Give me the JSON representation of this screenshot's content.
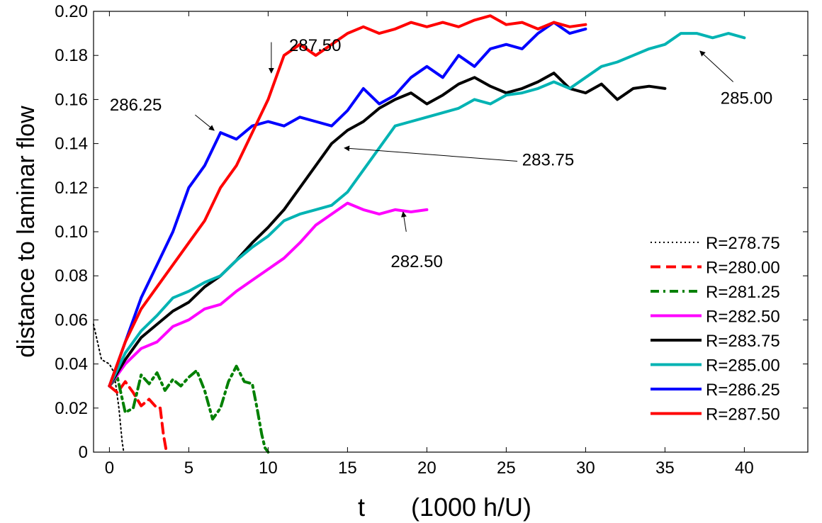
{
  "chart_data": {
    "type": "line",
    "xlabel": "t",
    "xlabel_units": "(1000 h/U)",
    "ylabel": "distance to laminar flow",
    "xlim": [
      -1,
      44
    ],
    "ylim": [
      0,
      0.2
    ],
    "x_ticks": [
      0,
      5,
      10,
      15,
      20,
      25,
      30,
      35,
      40
    ],
    "y_ticks": [
      0,
      0.02,
      0.04,
      0.06,
      0.08,
      0.1,
      0.12,
      0.14,
      0.16,
      0.18,
      0.2
    ],
    "y_tick_labels": [
      "0",
      "0.02",
      "0.04",
      "0.06",
      "0.08",
      "0.10",
      "0.12",
      "0.14",
      "0.16",
      "0.18",
      "0.20"
    ],
    "grid": false,
    "legend_position": "lower-right",
    "series": [
      {
        "name": "R=278.75",
        "color": "#000000",
        "style": "dotted",
        "x": [
          -1,
          -0.5,
          0,
          0.3,
          0.6,
          0.8,
          0.9
        ],
        "y": [
          0.058,
          0.042,
          0.04,
          0.036,
          0.02,
          0.005,
          0
        ]
      },
      {
        "name": "R=280.00",
        "color": "#ff0000",
        "style": "dashed",
        "x": [
          0,
          0.5,
          1,
          1.5,
          2,
          2.5,
          3,
          3.2,
          3.4,
          3.6
        ],
        "y": [
          0.03,
          0.027,
          0.032,
          0.027,
          0.021,
          0.024,
          0.02,
          0.02,
          0.008,
          0
        ]
      },
      {
        "name": "R=281.25",
        "color": "#008000",
        "style": "dashdot",
        "x": [
          0,
          0.5,
          1,
          1.5,
          2,
          2.5,
          3,
          3.5,
          4,
          4.5,
          5,
          5.5,
          6,
          6.5,
          7,
          7.5,
          8,
          8.5,
          9,
          9.3,
          9.6,
          9.8,
          10
        ],
        "y": [
          0.03,
          0.034,
          0.018,
          0.02,
          0.035,
          0.031,
          0.036,
          0.028,
          0.033,
          0.03,
          0.034,
          0.037,
          0.028,
          0.015,
          0.02,
          0.032,
          0.039,
          0.032,
          0.031,
          0.02,
          0.008,
          0.002,
          0
        ]
      },
      {
        "name": "R=282.50",
        "color": "#ff00ff",
        "style": "solid",
        "x": [
          0,
          1,
          2,
          3,
          4,
          5,
          6,
          7,
          8,
          9,
          10,
          11,
          12,
          13,
          14,
          15,
          16,
          17,
          18,
          19,
          20
        ],
        "y": [
          0.03,
          0.04,
          0.047,
          0.05,
          0.057,
          0.06,
          0.065,
          0.067,
          0.073,
          0.078,
          0.083,
          0.088,
          0.095,
          0.103,
          0.108,
          0.113,
          0.11,
          0.108,
          0.11,
          0.109,
          0.11
        ]
      },
      {
        "name": "R=283.75",
        "color": "#000000",
        "style": "solid",
        "x": [
          0,
          1,
          2,
          3,
          4,
          5,
          6,
          7,
          8,
          9,
          10,
          11,
          12,
          13,
          14,
          15,
          16,
          17,
          18,
          19,
          20,
          21,
          22,
          23,
          24,
          25,
          26,
          27,
          28,
          29,
          30,
          31,
          32,
          33,
          34,
          35
        ],
        "y": [
          0.03,
          0.042,
          0.052,
          0.058,
          0.064,
          0.068,
          0.075,
          0.08,
          0.087,
          0.095,
          0.102,
          0.11,
          0.12,
          0.13,
          0.14,
          0.146,
          0.15,
          0.156,
          0.16,
          0.163,
          0.158,
          0.162,
          0.167,
          0.17,
          0.166,
          0.163,
          0.165,
          0.168,
          0.172,
          0.165,
          0.163,
          0.167,
          0.16,
          0.165,
          0.166,
          0.165
        ]
      },
      {
        "name": "R=285.00",
        "color": "#00b3b3",
        "style": "solid",
        "x": [
          0,
          1,
          2,
          3,
          4,
          5,
          6,
          7,
          8,
          9,
          10,
          11,
          12,
          13,
          14,
          15,
          16,
          17,
          18,
          19,
          20,
          21,
          22,
          23,
          24,
          25,
          26,
          27,
          28,
          29,
          30,
          31,
          32,
          33,
          34,
          35,
          36,
          37,
          38,
          39,
          40
        ],
        "y": [
          0.03,
          0.045,
          0.055,
          0.062,
          0.07,
          0.073,
          0.077,
          0.08,
          0.087,
          0.093,
          0.098,
          0.105,
          0.108,
          0.11,
          0.112,
          0.118,
          0.128,
          0.138,
          0.148,
          0.15,
          0.152,
          0.154,
          0.156,
          0.16,
          0.158,
          0.162,
          0.163,
          0.165,
          0.168,
          0.165,
          0.17,
          0.175,
          0.177,
          0.18,
          0.183,
          0.185,
          0.19,
          0.19,
          0.188,
          0.19,
          0.188
        ]
      },
      {
        "name": "R=286.25",
        "color": "#0000ff",
        "style": "solid",
        "x": [
          0,
          1,
          2,
          3,
          4,
          5,
          6,
          7,
          8,
          9,
          10,
          11,
          12,
          13,
          14,
          15,
          16,
          17,
          18,
          19,
          20,
          21,
          22,
          23,
          24,
          25,
          26,
          27,
          28,
          29,
          30
        ],
        "y": [
          0.03,
          0.05,
          0.07,
          0.085,
          0.1,
          0.12,
          0.13,
          0.145,
          0.142,
          0.148,
          0.15,
          0.148,
          0.152,
          0.15,
          0.148,
          0.155,
          0.165,
          0.158,
          0.162,
          0.17,
          0.175,
          0.17,
          0.18,
          0.175,
          0.183,
          0.185,
          0.183,
          0.19,
          0.195,
          0.19,
          0.192
        ]
      },
      {
        "name": "R=287.50",
        "color": "#ff0000",
        "style": "solid",
        "x": [
          0,
          1,
          2,
          3,
          4,
          5,
          6,
          7,
          8,
          9,
          10,
          11,
          12,
          13,
          14,
          15,
          16,
          17,
          18,
          19,
          20,
          21,
          22,
          23,
          24,
          25,
          26,
          27,
          28,
          29,
          30
        ],
        "y": [
          0.03,
          0.05,
          0.065,
          0.075,
          0.085,
          0.095,
          0.105,
          0.12,
          0.13,
          0.145,
          0.16,
          0.18,
          0.185,
          0.18,
          0.185,
          0.19,
          0.193,
          0.19,
          0.192,
          0.195,
          0.193,
          0.195,
          0.193,
          0.196,
          0.198,
          0.194,
          0.195,
          0.192,
          0.195,
          0.193,
          0.194
        ]
      }
    ],
    "annotations": [
      {
        "text": "287.50",
        "x": 14.6,
        "y": 0.182,
        "text_anchor": "end",
        "arrow_from": [
          10.2,
          0.186
        ],
        "arrow_to": [
          10.2,
          0.172
        ]
      },
      {
        "text": "286.25",
        "x": 3.3,
        "y": 0.155,
        "text_anchor": "end",
        "arrow_from": [
          5.4,
          0.153
        ],
        "arrow_to": [
          6.6,
          0.146
        ]
      },
      {
        "text": "283.75",
        "x": 26.0,
        "y": 0.13,
        "text_anchor": "start",
        "arrow_from": [
          25.7,
          0.132
        ],
        "arrow_to": [
          14.8,
          0.138
        ]
      },
      {
        "text": "282.50",
        "x": 21.0,
        "y": 0.084,
        "text_anchor": "end",
        "arrow_from": [
          18.7,
          0.1
        ],
        "arrow_to": [
          18.5,
          0.109
        ]
      },
      {
        "text": "285.00",
        "x": 38.5,
        "y": 0.158,
        "text_anchor": "start",
        "arrow_from": [
          39.3,
          0.168
        ],
        "arrow_to": [
          37.2,
          0.182
        ]
      }
    ]
  }
}
